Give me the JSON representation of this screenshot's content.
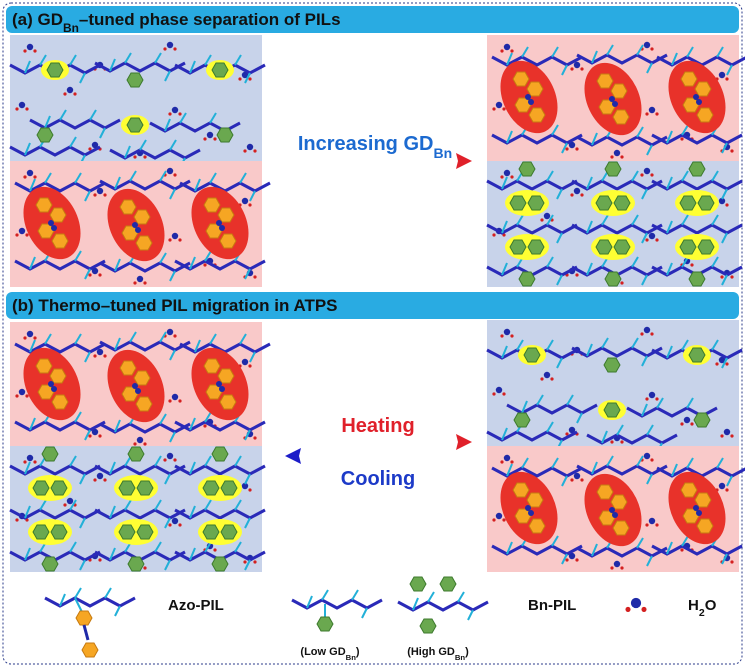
{
  "panel_a": {
    "title": {
      "prefix": "(a) GD",
      "sub": "Bn",
      "suffix": "–tuned phase separation of PILs"
    },
    "arrow_label": {
      "prefix": "Increasing GD",
      "sub": "Bn"
    }
  },
  "panel_b": {
    "title": "(b) Thermo–tuned PIL migration in ATPS",
    "heating": "Heating",
    "cooling": "Cooling"
  },
  "legend": {
    "azo": "Azo-PIL",
    "bn": "Bn-PIL",
    "water": {
      "prefix": "H",
      "sub": "2",
      "suffix": "O"
    },
    "low": {
      "prefix": "(Low GD",
      "sub": "Bn",
      "suffix": ")"
    },
    "high": {
      "prefix": "(High GD",
      "sub": "Bn",
      "suffix": ")"
    }
  }
}
